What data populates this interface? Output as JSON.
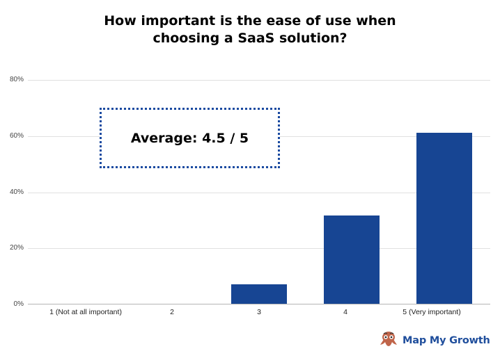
{
  "chart_data": {
    "type": "bar",
    "title": "How important is the ease of use when choosing a SaaS solution?",
    "title_lines": [
      "How important is the ease of use when",
      "choosing a SaaS solution?"
    ],
    "categories": [
      "1 (Not at all important)",
      "2",
      "3",
      "4",
      "5 (Very important)"
    ],
    "values": [
      0,
      0,
      7,
      31.5,
      61
    ],
    "value_unit": "%",
    "xlabel": "",
    "ylabel": "",
    "ylim": [
      0,
      80
    ],
    "yticks": [
      "0%",
      "20%",
      "40%",
      "60%",
      "80%"
    ],
    "grid": true,
    "legend": null,
    "bar_color": "#174593",
    "annotation": "Average: 4.5 / 5"
  },
  "annotation_box": {
    "text": "Average: 4.5 / 5",
    "border_color": "#1a4aa0"
  },
  "branding": {
    "logo_text": "Map My Growth",
    "logo_icon": "octopus-mascot-icon",
    "text_color": "#1f4e9c",
    "icon_color": "#c0654a"
  }
}
